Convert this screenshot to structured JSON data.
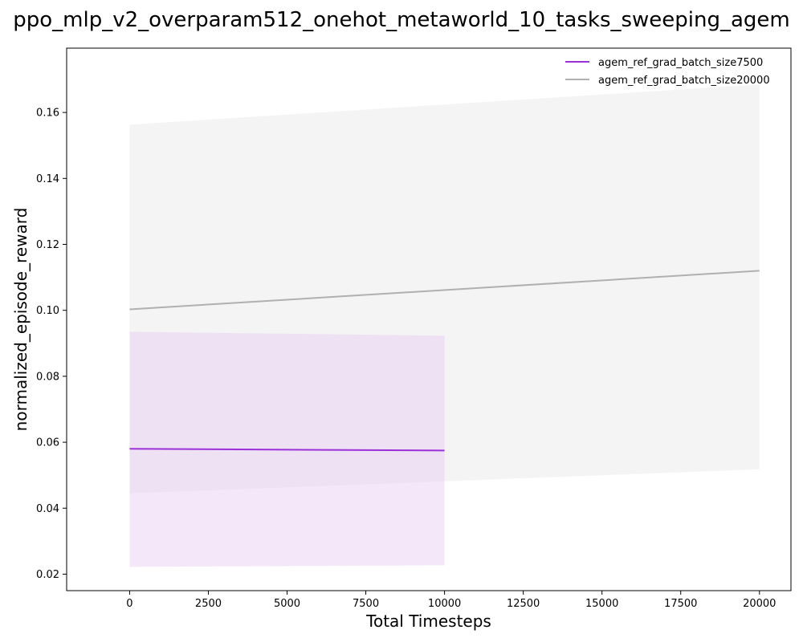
{
  "chart_data": {
    "type": "line",
    "title": "ppo_mlp_v2_overparam512_onehot_metaworld_10_tasks_sweeping_agem",
    "xlabel": "Total Timesteps",
    "ylabel": "normalized_episode_reward",
    "xlim": [
      -2000,
      21000
    ],
    "ylim": [
      0.015,
      0.1795
    ],
    "xticks": [
      0,
      2500,
      5000,
      7500,
      10000,
      12500,
      15000,
      17500,
      20000
    ],
    "yticks": [
      0.02,
      0.04,
      0.06,
      0.08,
      0.1,
      0.12,
      0.14,
      0.16
    ],
    "ytick_labels": [
      "0.02",
      "0.04",
      "0.06",
      "0.08",
      "0.10",
      "0.12",
      "0.14",
      "0.16"
    ],
    "grid": false,
    "legend_position": "top-right",
    "series": [
      {
        "name": "agem_ref_grad_batch_size7500",
        "color": "#9b30d9",
        "band_color": "#e6c9f5",
        "x": [
          0,
          10000
        ],
        "y": [
          0.058,
          0.0575
        ],
        "y_lower": [
          0.0222,
          0.0227
        ],
        "y_upper": [
          0.0935,
          0.0923
        ]
      },
      {
        "name": "agem_ref_grad_batch_size20000",
        "color": "#b0b0b0",
        "band_color": "#dcdcdc",
        "x": [
          0,
          20000
        ],
        "y": [
          0.1003,
          0.112
        ],
        "y_lower": [
          0.0445,
          0.0518
        ],
        "y_upper": [
          0.1563,
          0.1685
        ]
      }
    ]
  }
}
